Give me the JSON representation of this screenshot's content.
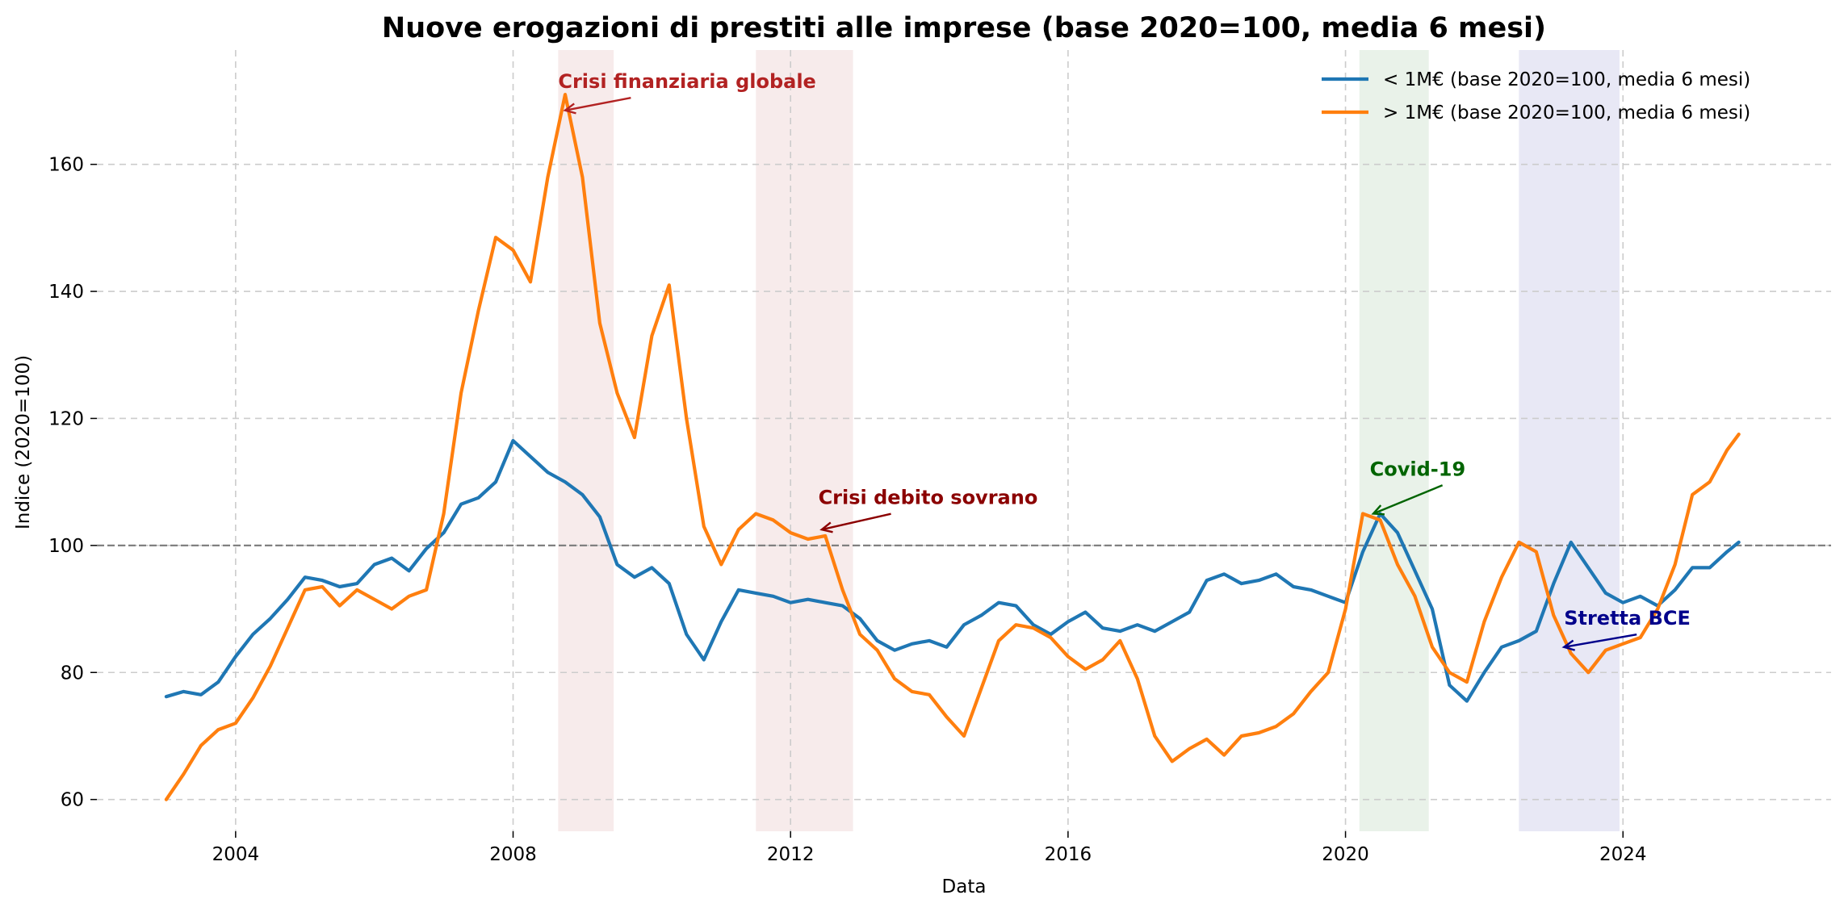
{
  "chart_data": {
    "type": "line",
    "title": "Nuove erogazioni di prestiti alle imprese (base 2020=100, media 6 mesi)",
    "xlabel": "Data",
    "ylabel": "Indice (2020=100)",
    "xlim": [
      2002.0,
      2027.0
    ],
    "ylim": [
      55,
      178
    ],
    "x_ticks": [
      2004,
      2008,
      2012,
      2016,
      2020,
      2024
    ],
    "x_tick_labels": [
      "2004",
      "2008",
      "2012",
      "2016",
      "2020",
      "2024"
    ],
    "y_ticks": [
      60,
      80,
      100,
      120,
      140,
      160
    ],
    "y_tick_labels": [
      "60",
      "80",
      "100",
      "120",
      "140",
      "160"
    ],
    "grid": true,
    "legend_position": "top-right",
    "reference_line": {
      "y": 100,
      "color": "#808080",
      "style": "dashed"
    },
    "shaded_periods": [
      {
        "start": 2008.65,
        "end": 2009.45,
        "color": "#d9a3a3",
        "opacity": 0.22
      },
      {
        "start": 2011.5,
        "end": 2012.9,
        "color": "#d9a3a3",
        "opacity": 0.22
      },
      {
        "start": 2020.2,
        "end": 2021.2,
        "color": "#9cc59c",
        "opacity": 0.22
      },
      {
        "start": 2022.5,
        "end": 2023.95,
        "color": "#a3a3d9",
        "opacity": 0.25
      }
    ],
    "annotations": [
      {
        "text": "Crisi finanziaria globale",
        "color": "#b22222",
        "text_x": 2008.65,
        "text_y": 172,
        "point_x": 2008.75,
        "point_y": 168.5
      },
      {
        "text": "Crisi debito sovrano",
        "color": "#8b0000",
        "text_x": 2012.4,
        "text_y": 106.5,
        "point_x": 2012.45,
        "point_y": 102.5
      },
      {
        "text": "Covid-19",
        "color": "#006400",
        "text_x": 2020.35,
        "text_y": 111,
        "point_x": 2020.4,
        "point_y": 105
      },
      {
        "text": "Stretta BCE",
        "color": "#00008b",
        "text_x": 2023.15,
        "text_y": 87.5,
        "point_x": 2023.15,
        "point_y": 84
      }
    ],
    "series": [
      {
        "name": "< 1M€ (base 2020=100, media 6 mesi)",
        "color": "#1f77b4",
        "points": [
          [
            2003.0,
            76.2
          ],
          [
            2003.25,
            77.0
          ],
          [
            2003.5,
            76.5
          ],
          [
            2003.75,
            78.5
          ],
          [
            2004.0,
            82.5
          ],
          [
            2004.25,
            86.0
          ],
          [
            2004.5,
            88.5
          ],
          [
            2004.75,
            91.5
          ],
          [
            2005.0,
            95.0
          ],
          [
            2005.25,
            94.5
          ],
          [
            2005.5,
            93.5
          ],
          [
            2005.75,
            94.0
          ],
          [
            2006.0,
            97.0
          ],
          [
            2006.25,
            98.0
          ],
          [
            2006.5,
            96.0
          ],
          [
            2006.75,
            99.5
          ],
          [
            2007.0,
            102.0
          ],
          [
            2007.25,
            106.5
          ],
          [
            2007.5,
            107.5
          ],
          [
            2007.75,
            110.0
          ],
          [
            2008.0,
            116.5
          ],
          [
            2008.25,
            114.0
          ],
          [
            2008.5,
            111.5
          ],
          [
            2008.75,
            110.0
          ],
          [
            2009.0,
            108.0
          ],
          [
            2009.25,
            104.5
          ],
          [
            2009.5,
            97.0
          ],
          [
            2009.75,
            95.0
          ],
          [
            2010.0,
            96.5
          ],
          [
            2010.25,
            94.0
          ],
          [
            2010.5,
            86.0
          ],
          [
            2010.75,
            82.0
          ],
          [
            2011.0,
            88.0
          ],
          [
            2011.25,
            93.0
          ],
          [
            2011.5,
            92.5
          ],
          [
            2011.75,
            92.0
          ],
          [
            2012.0,
            91.0
          ],
          [
            2012.25,
            91.5
          ],
          [
            2012.5,
            91.0
          ],
          [
            2012.75,
            90.5
          ],
          [
            2013.0,
            88.5
          ],
          [
            2013.25,
            85.0
          ],
          [
            2013.5,
            83.5
          ],
          [
            2013.75,
            84.5
          ],
          [
            2014.0,
            85.0
          ],
          [
            2014.25,
            84.0
          ],
          [
            2014.5,
            87.5
          ],
          [
            2014.75,
            89.0
          ],
          [
            2015.0,
            91.0
          ],
          [
            2015.25,
            90.5
          ],
          [
            2015.5,
            87.5
          ],
          [
            2015.75,
            86.0
          ],
          [
            2016.0,
            88.0
          ],
          [
            2016.25,
            89.5
          ],
          [
            2016.5,
            87.0
          ],
          [
            2016.75,
            86.5
          ],
          [
            2017.0,
            87.5
          ],
          [
            2017.25,
            86.5
          ],
          [
            2017.5,
            88.0
          ],
          [
            2017.75,
            89.5
          ],
          [
            2018.0,
            94.5
          ],
          [
            2018.25,
            95.5
          ],
          [
            2018.5,
            94.0
          ],
          [
            2018.75,
            94.5
          ],
          [
            2019.0,
            95.5
          ],
          [
            2019.25,
            93.5
          ],
          [
            2019.5,
            93.0
          ],
          [
            2019.75,
            92.0
          ],
          [
            2020.0,
            91.0
          ],
          [
            2020.25,
            99.0
          ],
          [
            2020.5,
            105.0
          ],
          [
            2020.75,
            102.0
          ],
          [
            2021.0,
            96.0
          ],
          [
            2021.25,
            90.0
          ],
          [
            2021.5,
            78.0
          ],
          [
            2021.75,
            75.5
          ],
          [
            2022.0,
            80.0
          ],
          [
            2022.25,
            84.0
          ],
          [
            2022.5,
            85.0
          ],
          [
            2022.75,
            86.5
          ],
          [
            2023.0,
            94.0
          ],
          [
            2023.25,
            100.5
          ],
          [
            2023.5,
            96.5
          ],
          [
            2023.75,
            92.5
          ],
          [
            2024.0,
            91.0
          ],
          [
            2024.25,
            92.0
          ],
          [
            2024.5,
            90.5
          ],
          [
            2024.75,
            93.0
          ],
          [
            2025.0,
            96.5
          ],
          [
            2025.25,
            96.5
          ],
          [
            2025.5,
            99.0
          ],
          [
            2025.67,
            100.5
          ]
        ]
      },
      {
        "name": "> 1M€ (base 2020=100, media 6 mesi)",
        "color": "#ff7f0e",
        "points": [
          [
            2003.0,
            60.0
          ],
          [
            2003.25,
            64.0
          ],
          [
            2003.5,
            68.5
          ],
          [
            2003.75,
            71.0
          ],
          [
            2004.0,
            72.0
          ],
          [
            2004.25,
            76.0
          ],
          [
            2004.5,
            81.0
          ],
          [
            2004.75,
            87.0
          ],
          [
            2005.0,
            93.0
          ],
          [
            2005.25,
            93.5
          ],
          [
            2005.5,
            90.5
          ],
          [
            2005.75,
            93.0
          ],
          [
            2006.0,
            91.5
          ],
          [
            2006.25,
            90.0
          ],
          [
            2006.5,
            92.0
          ],
          [
            2006.75,
            93.0
          ],
          [
            2007.0,
            105.0
          ],
          [
            2007.25,
            124.0
          ],
          [
            2007.5,
            137.0
          ],
          [
            2007.75,
            148.5
          ],
          [
            2008.0,
            146.5
          ],
          [
            2008.25,
            141.5
          ],
          [
            2008.5,
            158.0
          ],
          [
            2008.75,
            171.0
          ],
          [
            2009.0,
            158.0
          ],
          [
            2009.25,
            135.0
          ],
          [
            2009.5,
            124.0
          ],
          [
            2009.75,
            117.0
          ],
          [
            2010.0,
            133.0
          ],
          [
            2010.25,
            141.0
          ],
          [
            2010.5,
            120.0
          ],
          [
            2010.75,
            103.0
          ],
          [
            2011.0,
            97.0
          ],
          [
            2011.25,
            102.5
          ],
          [
            2011.5,
            105.0
          ],
          [
            2011.75,
            104.0
          ],
          [
            2012.0,
            102.0
          ],
          [
            2012.25,
            101.0
          ],
          [
            2012.5,
            101.5
          ],
          [
            2012.75,
            93.0
          ],
          [
            2013.0,
            86.0
          ],
          [
            2013.25,
            83.5
          ],
          [
            2013.5,
            79.0
          ],
          [
            2013.75,
            77.0
          ],
          [
            2014.0,
            76.5
          ],
          [
            2014.25,
            73.0
          ],
          [
            2014.5,
            70.0
          ],
          [
            2014.75,
            77.5
          ],
          [
            2015.0,
            85.0
          ],
          [
            2015.25,
            87.5
          ],
          [
            2015.5,
            87.0
          ],
          [
            2015.75,
            85.5
          ],
          [
            2016.0,
            82.5
          ],
          [
            2016.25,
            80.5
          ],
          [
            2016.5,
            82.0
          ],
          [
            2016.75,
            85.0
          ],
          [
            2017.0,
            79.0
          ],
          [
            2017.25,
            70.0
          ],
          [
            2017.5,
            66.0
          ],
          [
            2017.75,
            68.0
          ],
          [
            2018.0,
            69.5
          ],
          [
            2018.25,
            67.0
          ],
          [
            2018.5,
            70.0
          ],
          [
            2018.75,
            70.5
          ],
          [
            2019.0,
            71.5
          ],
          [
            2019.25,
            73.5
          ],
          [
            2019.5,
            77.0
          ],
          [
            2019.75,
            80.0
          ],
          [
            2020.0,
            90.0
          ],
          [
            2020.25,
            105.0
          ],
          [
            2020.5,
            104.0
          ],
          [
            2020.75,
            97.0
          ],
          [
            2021.0,
            92.0
          ],
          [
            2021.25,
            84.0
          ],
          [
            2021.5,
            80.0
          ],
          [
            2021.75,
            78.5
          ],
          [
            2022.0,
            88.0
          ],
          [
            2022.25,
            95.0
          ],
          [
            2022.5,
            100.5
          ],
          [
            2022.75,
            99.0
          ],
          [
            2023.0,
            89.0
          ],
          [
            2023.25,
            83.0
          ],
          [
            2023.5,
            80.0
          ],
          [
            2023.75,
            83.5
          ],
          [
            2024.0,
            84.5
          ],
          [
            2024.25,
            85.5
          ],
          [
            2024.5,
            90.0
          ],
          [
            2024.75,
            97.0
          ],
          [
            2025.0,
            108.0
          ],
          [
            2025.25,
            110.0
          ],
          [
            2025.5,
            115.0
          ],
          [
            2025.67,
            117.5
          ]
        ]
      }
    ]
  }
}
